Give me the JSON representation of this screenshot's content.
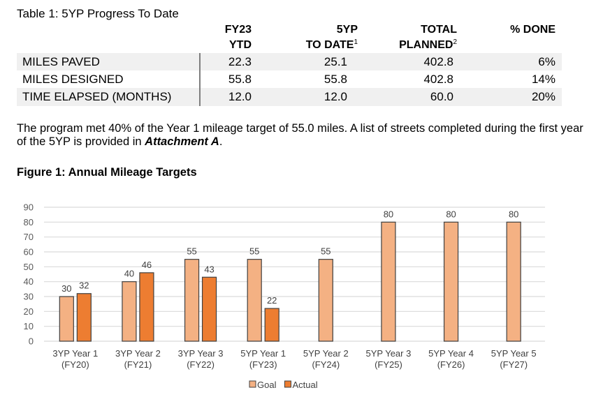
{
  "table": {
    "title": "Table 1: 5YP Progress To Date",
    "headers": [
      {
        "line1": "FY23",
        "line2": "YTD",
        "sup": ""
      },
      {
        "line1": "5YP",
        "line2": "TO DATE",
        "sup": "1"
      },
      {
        "line1": "TOTAL",
        "line2": "PLANNED",
        "sup": "2"
      },
      {
        "line1": "% DONE",
        "line2": "",
        "sup": ""
      }
    ],
    "rows": [
      {
        "label": "MILES PAVED",
        "fy23_ytd": "22.3",
        "to_date": "25.1",
        "total_planned": "402.8",
        "pct_done": "6%"
      },
      {
        "label": "MILES DESIGNED",
        "fy23_ytd": "55.8",
        "to_date": "55.8",
        "total_planned": "402.8",
        "pct_done": "14%"
      },
      {
        "label": "TIME ELAPSED (MONTHS)",
        "fy23_ytd": "12.0",
        "to_date": "12.0",
        "total_planned": "60.0",
        "pct_done": "20%"
      }
    ]
  },
  "paragraph": {
    "text_before": "The program met 40% of the Year 1 mileage target of 55.0 miles. A list of streets completed during the first year of the 5YP is provided in ",
    "emphasis": "Attachment A",
    "text_after": "."
  },
  "figure": {
    "title": "Figure 1: Annual Mileage Targets"
  },
  "colors": {
    "goal": "#F4B183",
    "actual": "#ED7D31",
    "bar_outline": "#404040",
    "gridline": "#d9d9d9"
  },
  "chart_data": {
    "type": "bar",
    "title": "Figure 1: Annual Mileage Targets",
    "xlabel": "",
    "ylabel": "",
    "ylim": [
      0,
      90
    ],
    "yticks": [
      0,
      10,
      20,
      30,
      40,
      50,
      60,
      70,
      80,
      90
    ],
    "grid": true,
    "legend_position": "bottom",
    "categories": [
      [
        "3YP Year 1",
        "(FY20)"
      ],
      [
        "3YP Year 2",
        "(FY21)"
      ],
      [
        "3YP Year 3",
        "(FY22)"
      ],
      [
        "5YP Year 1",
        "(FY23)"
      ],
      [
        "5YP Year 2",
        "(FY24)"
      ],
      [
        "5YP Year 3",
        "(FY25)"
      ],
      [
        "5YP Year 4",
        "(FY26)"
      ],
      [
        "5YP Year 5",
        "(FY27)"
      ]
    ],
    "series": [
      {
        "name": "Goal",
        "values": [
          30,
          40,
          55,
          55,
          55,
          80,
          80,
          80
        ]
      },
      {
        "name": "Actual",
        "values": [
          32,
          46,
          43,
          22,
          null,
          null,
          null,
          null
        ]
      }
    ]
  }
}
